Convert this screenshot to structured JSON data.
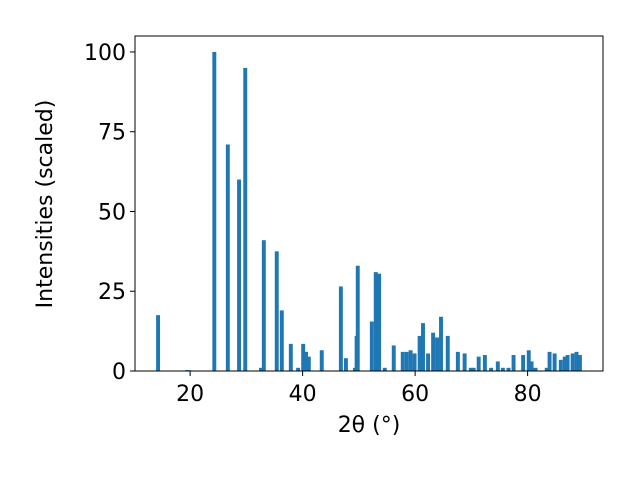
{
  "chart_data": {
    "type": "bar",
    "x_label": "2θ (°)",
    "y_label": "Intensities (scaled)",
    "color": "#1f77b4",
    "bar_width": 0.7,
    "x": [
      14.3,
      19.5,
      20,
      24.3,
      26.7,
      28.7,
      29.8,
      32.6,
      33.1,
      35.4,
      36.3,
      37.9,
      39.2,
      40.1,
      40.6,
      41.1,
      43.4,
      46.8,
      47.7,
      49.3,
      49.6,
      49.8,
      52.3,
      53.0,
      53.6,
      54.6,
      56.2,
      57.8,
      58.5,
      59.2,
      59.9,
      60.8,
      61.4,
      62.3,
      63.2,
      63.9,
      64.6,
      65.8,
      67.6,
      68.8,
      69.9,
      70.4,
      71.3,
      72.4,
      73.5,
      74.7,
      75.6,
      76.6,
      77.5,
      79.2,
      80.2,
      80.7,
      81.4,
      83.4,
      83.9,
      84.8,
      85.9,
      86.6,
      87.1,
      88.0,
      88.7,
      89.3
    ],
    "values": [
      17.5,
      0.3,
      0.2,
      100,
      71,
      60,
      95,
      1,
      41,
      37.5,
      19,
      8.5,
      1,
      8.5,
      6,
      4.5,
      6.5,
      26.5,
      4,
      1,
      11,
      33,
      15.5,
      31,
      30.5,
      1,
      8,
      6,
      6,
      6.5,
      5.5,
      11,
      15,
      5.5,
      12,
      10.5,
      17,
      11,
      6,
      5.5,
      1,
      1,
      4.5,
      5,
      1,
      3,
      1,
      1,
      5,
      5,
      6.5,
      3,
      1,
      1,
      6,
      5.5,
      3.5,
      4.5,
      5,
      5.5,
      6,
      5
    ],
    "xlim": [
      10.2,
      93.4
    ],
    "ylim": [
      0,
      105
    ],
    "xticks": [
      20,
      40,
      60,
      80
    ],
    "yticks": [
      0,
      25,
      50,
      75,
      100
    ]
  }
}
